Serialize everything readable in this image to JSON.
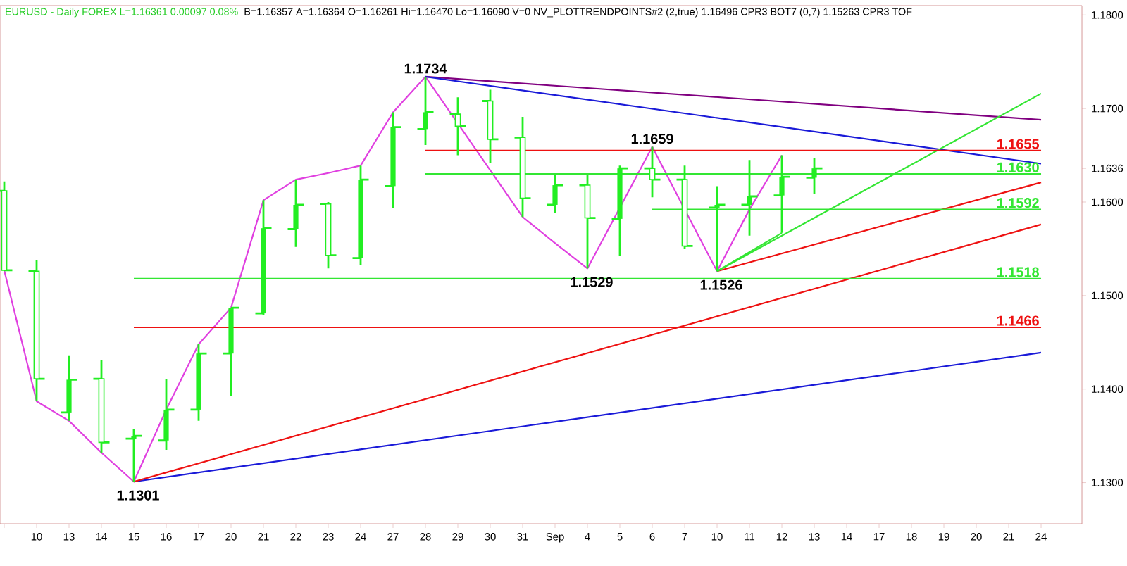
{
  "chart_data": {
    "type": "candlestick",
    "title": "EURUSD - Daily FOREX L=1.16361 0.00097 0.08%",
    "subtitle": "B=1.16357 A=1.16364 O=1.16261 Hi=1.16470 Lo=1.16090 V=0 NV_PLOTTRENDPOINTS#2 (2,true) 1.16496 CPR3 BOT7 (0,7) 1.15263 CPR3 TOF",
    "categories": [
      null,
      "10",
      "13",
      "14",
      "15",
      "16",
      "17",
      "20",
      "21",
      "22",
      "23",
      "24",
      "27",
      "28",
      "29",
      "30",
      "31",
      "Sep",
      "4",
      "5",
      "6",
      "7",
      "10",
      "11",
      "12",
      "13",
      "14",
      "17",
      "18",
      "19",
      "20",
      "21",
      "24"
    ],
    "color": "#22ee22",
    "ohlc": [
      [
        1.1612,
        1.1622,
        1.1527,
        1.1527
      ],
      [
        1.1526,
        1.1538,
        1.1387,
        1.1411
      ],
      [
        1.1375,
        1.1436,
        1.1366,
        1.141
      ],
      [
        1.1411,
        1.1431,
        1.1332,
        1.1343
      ],
      [
        1.1347,
        1.1357,
        1.1301,
        1.135
      ],
      [
        1.1345,
        1.1411,
        1.1335,
        1.1378
      ],
      [
        1.1378,
        1.1448,
        1.1366,
        1.1438
      ],
      [
        1.1438,
        1.1487,
        1.1393,
        1.1487
      ],
      [
        1.1481,
        1.1602,
        1.1479,
        1.1572
      ],
      [
        1.1571,
        1.1624,
        1.1552,
        1.1597
      ],
      [
        1.1598,
        1.16,
        1.1529,
        1.1543
      ],
      [
        1.154,
        1.1639,
        1.1533,
        1.1624
      ],
      [
        1.1617,
        1.1696,
        1.1594,
        1.168
      ],
      [
        1.1678,
        1.1734,
        1.1661,
        1.1696
      ],
      [
        1.1694,
        1.1712,
        1.165,
        1.1681
      ],
      [
        1.1708,
        1.172,
        1.1642,
        1.1667
      ],
      [
        1.1669,
        1.1691,
        1.1584,
        1.1604
      ],
      [
        1.1597,
        1.1629,
        1.1588,
        1.1618
      ],
      [
        1.1618,
        1.1629,
        1.1529,
        1.1583
      ],
      [
        1.1582,
        1.1639,
        1.1542,
        1.1636
      ],
      [
        1.1636,
        1.1659,
        1.1605,
        1.1624
      ],
      [
        1.1624,
        1.1639,
        1.155,
        1.1553
      ],
      [
        1.1594,
        1.1617,
        1.1526,
        1.1597
      ],
      [
        1.1597,
        1.1645,
        1.1564,
        1.1606
      ],
      [
        1.1607,
        1.165,
        1.1567,
        1.1627
      ],
      [
        1.1626,
        1.1647,
        1.1609,
        1.1636
      ],
      null,
      null,
      null,
      null,
      null,
      null,
      null
    ],
    "series": [
      {
        "type": "line",
        "color": "#e040e0",
        "values": [
          1.1527,
          1.1387,
          1.1366,
          1.1332,
          1.1301,
          1.1378,
          1.1448,
          1.1487,
          1.1602,
          1.1624,
          1.1631,
          1.1639,
          1.1696,
          1.1734,
          1.1684,
          1.1634,
          1.1584,
          1.1556,
          1.1529,
          1.1594,
          1.1659,
          1.1592,
          1.1526,
          1.1592,
          1.165,
          null,
          null,
          null,
          null,
          null,
          null,
          null,
          null
        ]
      },
      {
        "type": "line",
        "color": "#800080",
        "values": [
          null,
          null,
          null,
          null,
          null,
          null,
          null,
          null,
          null,
          null,
          null,
          null,
          null,
          1.1734,
          null,
          null,
          null,
          null,
          null,
          null,
          null,
          null,
          null,
          null,
          null,
          null,
          null,
          null,
          null,
          null,
          null,
          null,
          1.1688
        ]
      },
      {
        "type": "line",
        "color": "#1a1ad8",
        "values": [
          null,
          null,
          null,
          null,
          null,
          null,
          null,
          null,
          null,
          null,
          null,
          null,
          null,
          1.1734,
          null,
          null,
          null,
          null,
          null,
          null,
          null,
          null,
          null,
          null,
          null,
          null,
          null,
          null,
          null,
          null,
          null,
          null,
          1.1641
        ]
      },
      {
        "type": "line",
        "color": "#1a1ad8",
        "values": [
          null,
          null,
          null,
          null,
          1.1301,
          null,
          null,
          null,
          null,
          null,
          null,
          null,
          null,
          null,
          null,
          null,
          null,
          null,
          null,
          null,
          null,
          null,
          null,
          null,
          null,
          null,
          null,
          null,
          null,
          null,
          null,
          null,
          1.1439
        ]
      },
      {
        "type": "line",
        "color": "#ee1111",
        "values": [
          null,
          null,
          null,
          null,
          1.1301,
          null,
          null,
          null,
          null,
          null,
          null,
          null,
          null,
          null,
          null,
          null,
          null,
          null,
          null,
          null,
          null,
          null,
          null,
          null,
          null,
          null,
          null,
          null,
          null,
          null,
          null,
          null,
          1.1576
        ]
      },
      {
        "type": "line",
        "color": "#ee1111",
        "values": [
          null,
          null,
          null,
          null,
          null,
          null,
          null,
          null,
          null,
          null,
          null,
          null,
          null,
          null,
          null,
          null,
          null,
          null,
          null,
          null,
          null,
          null,
          1.1526,
          null,
          null,
          null,
          null,
          null,
          null,
          null,
          null,
          null,
          1.1621
        ]
      },
      {
        "type": "line",
        "color": "#33e633",
        "values": [
          null,
          null,
          null,
          null,
          null,
          null,
          null,
          null,
          null,
          null,
          null,
          null,
          null,
          null,
          null,
          null,
          null,
          null,
          null,
          null,
          null,
          null,
          1.1526,
          null,
          null,
          null,
          null,
          null,
          null,
          null,
          null,
          null,
          1.1716
        ]
      },
      {
        "type": "line",
        "color": "#33e633",
        "values": [
          null,
          null,
          null,
          null,
          null,
          null,
          null,
          null,
          null,
          null,
          null,
          null,
          null,
          null,
          null,
          null,
          null,
          null,
          null,
          null,
          null,
          null,
          1.1526,
          null,
          1.1567,
          null,
          null,
          null,
          null,
          null,
          null,
          null,
          null
        ]
      },
      {
        "type": "line",
        "name": "1.1655",
        "color": "#ee1111",
        "values": [
          null,
          null,
          null,
          null,
          null,
          null,
          null,
          null,
          null,
          null,
          null,
          null,
          null,
          1.1655,
          null,
          null,
          null,
          null,
          null,
          null,
          null,
          null,
          null,
          null,
          null,
          null,
          null,
          null,
          null,
          null,
          null,
          null,
          1.1655
        ]
      },
      {
        "type": "line",
        "name": "1.1630",
        "color": "#33e633",
        "values": [
          null,
          null,
          null,
          null,
          null,
          null,
          null,
          null,
          null,
          null,
          null,
          null,
          null,
          1.163,
          null,
          null,
          null,
          null,
          null,
          null,
          null,
          null,
          null,
          null,
          null,
          null,
          null,
          null,
          null,
          null,
          null,
          null,
          1.163
        ]
      },
      {
        "type": "line",
        "name": "1.1592",
        "color": "#33e633",
        "values": [
          null,
          null,
          null,
          null,
          null,
          null,
          null,
          null,
          null,
          null,
          null,
          null,
          null,
          null,
          null,
          null,
          null,
          null,
          null,
          null,
          1.1592,
          null,
          null,
          null,
          null,
          null,
          null,
          null,
          null,
          null,
          null,
          null,
          1.1592
        ]
      },
      {
        "type": "line",
        "name": "1.1518",
        "color": "#33e633",
        "values": [
          null,
          null,
          null,
          null,
          1.1518,
          null,
          null,
          null,
          null,
          null,
          null,
          null,
          null,
          null,
          null,
          null,
          null,
          null,
          null,
          null,
          null,
          null,
          null,
          null,
          null,
          null,
          null,
          null,
          null,
          null,
          null,
          null,
          1.1518
        ]
      },
      {
        "type": "line",
        "name": "1.1466",
        "color": "#ee1111",
        "values": [
          null,
          null,
          null,
          null,
          1.1466,
          null,
          null,
          null,
          null,
          null,
          null,
          null,
          null,
          null,
          null,
          null,
          null,
          null,
          null,
          null,
          null,
          null,
          null,
          null,
          null,
          null,
          null,
          null,
          null,
          null,
          null,
          null,
          1.1466
        ]
      }
    ],
    "annotations": [
      {
        "text": "1.1734",
        "x": "28",
        "y": 1.1734
      },
      {
        "text": "1.1659",
        "x": "6",
        "y": 1.1659
      },
      {
        "text": "1.1529",
        "x": "4",
        "y": 1.1529
      },
      {
        "text": "1.1526",
        "y": 1.1526
      },
      {
        "text": "1.1301",
        "x": "15",
        "y": 1.1301
      }
    ],
    "ylim": [
      1.1256,
      1.181
    ],
    "yticks": [
      {
        "value": 1.13,
        "label": "1.1300"
      },
      {
        "value": 1.14,
        "label": "1.1400"
      },
      {
        "value": 1.15,
        "label": "1.1500"
      },
      {
        "value": 1.16,
        "label": "1.1600"
      },
      {
        "value": 1.1636,
        "label": "1.1636"
      },
      {
        "value": 1.17,
        "label": "1.1700"
      },
      {
        "value": 1.18,
        "label": "1.1800"
      }
    ]
  }
}
